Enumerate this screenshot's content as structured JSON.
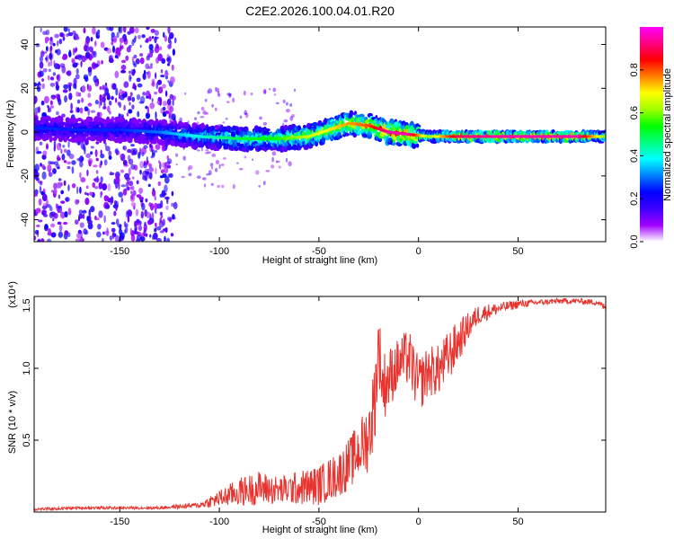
{
  "title": "C2E2.2026.100.04.01.R20",
  "chart_data": [
    {
      "type": "heatmap",
      "xlabel": "Height of straight line (km)",
      "ylabel": "Frequency (Hz)",
      "xlim": [
        -193,
        94
      ],
      "ylim": [
        -50,
        48
      ],
      "xticks": [
        -150,
        -100,
        -50,
        0,
        50
      ],
      "xtick_labels": [
        "-150",
        "-100",
        "-50",
        "0",
        "50"
      ],
      "yticks": [
        -40,
        -20,
        0,
        20,
        40
      ],
      "ytick_labels": [
        "-40",
        "-20",
        "0",
        "20",
        "40"
      ],
      "colorbar": {
        "label": "Normalized spectral amplitude",
        "range": [
          0,
          1
        ],
        "ticks": [
          0.0,
          0.2,
          0.4,
          0.6,
          0.8
        ],
        "tick_labels": [
          "0.0",
          "0.2",
          "0.4",
          "0.6",
          "0.8"
        ],
        "colors": [
          "#ffffff",
          "#a000ff",
          "#3c00ff",
          "#0000ff",
          "#0080ff",
          "#00ffff",
          "#00ff80",
          "#00ff00",
          "#a0ff00",
          "#ffff00",
          "#ff8000",
          "#ff0000",
          "#ff0080",
          "#ff00ff"
        ]
      },
      "ridge": {
        "x": [
          -193,
          -170,
          -150,
          -130,
          -110,
          -90,
          -70,
          -55,
          -45,
          -35,
          -25,
          -15,
          -5,
          5,
          20,
          40,
          60,
          80,
          94
        ],
        "freq": [
          2,
          1,
          1,
          0,
          -2,
          -3,
          -3,
          -2,
          1,
          4,
          3,
          0,
          -1,
          -2,
          -2,
          -2,
          -2,
          -2,
          -2
        ],
        "amplitude": [
          0.25,
          0.25,
          0.25,
          0.3,
          0.4,
          0.5,
          0.55,
          0.65,
          0.7,
          0.75,
          0.8,
          0.95,
          0.95,
          0.6,
          0.9,
          0.95,
          0.95,
          0.95,
          0.6
        ]
      }
    },
    {
      "type": "line",
      "xlabel": "Height of straight line (km)",
      "ylabel": "SNR (10 * v/v)",
      "scale_label": "(x10⁴)",
      "xlim": [
        -193,
        94
      ],
      "ylim": [
        0,
        1.5
      ],
      "xticks": [
        -150,
        -100,
        -50,
        0,
        50
      ],
      "xtick_labels": [
        "-150",
        "-100",
        "-50",
        "0",
        "50"
      ],
      "yticks": [
        0.5,
        1.0,
        1.5
      ],
      "ytick_labels": [
        "0.5",
        "1.0",
        "1.5"
      ],
      "color": "#e8332e",
      "series": [
        {
          "name": "SNR",
          "x": [
            -193,
            -170,
            -150,
            -130,
            -120,
            -110,
            -100,
            -90,
            -80,
            -70,
            -60,
            -50,
            -40,
            -35,
            -30,
            -25,
            -22,
            -20,
            -18,
            -15,
            -10,
            -5,
            0,
            5,
            10,
            15,
            20,
            25,
            30,
            40,
            50,
            60,
            70,
            80,
            90,
            94
          ],
          "y": [
            0.02,
            0.03,
            0.03,
            0.03,
            0.04,
            0.05,
            0.1,
            0.15,
            0.18,
            0.16,
            0.18,
            0.2,
            0.28,
            0.35,
            0.45,
            0.55,
            0.8,
            1.2,
            0.9,
            0.95,
            1.05,
            1.1,
            0.9,
            1.0,
            1.0,
            1.1,
            1.2,
            1.3,
            1.38,
            1.42,
            1.45,
            1.46,
            1.47,
            1.47,
            1.46,
            1.42
          ],
          "noise": [
            0.01,
            0.01,
            0.01,
            0.01,
            0.015,
            0.02,
            0.06,
            0.1,
            0.12,
            0.1,
            0.12,
            0.14,
            0.16,
            0.18,
            0.2,
            0.25,
            0.3,
            0.25,
            0.25,
            0.22,
            0.18,
            0.2,
            0.2,
            0.18,
            0.18,
            0.18,
            0.15,
            0.1,
            0.07,
            0.04,
            0.03,
            0.02,
            0.02,
            0.02,
            0.02,
            0.03
          ]
        }
      ]
    }
  ]
}
